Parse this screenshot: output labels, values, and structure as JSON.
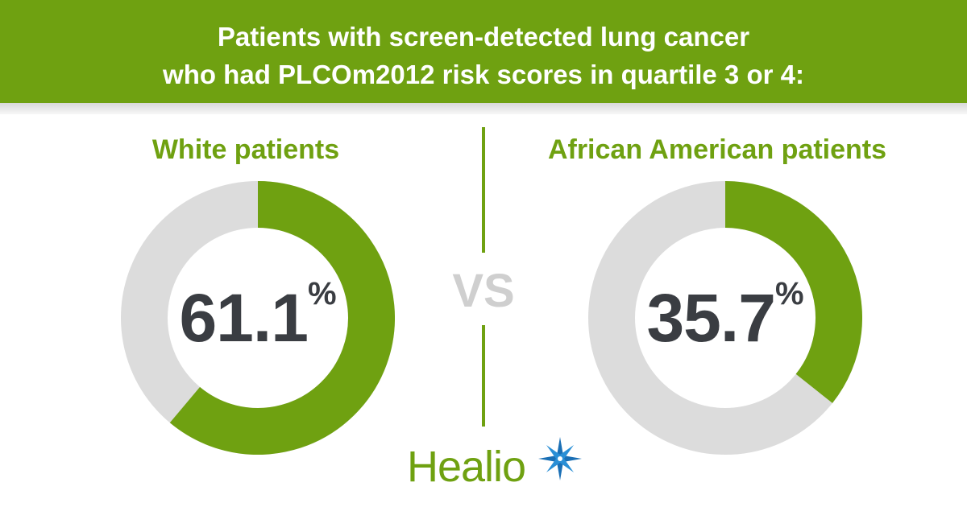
{
  "header": {
    "title_line1": "Patients with screen-detected lung cancer",
    "title_line2": "who had PLCOm2012 risk scores in quartile 3 or 4:"
  },
  "comparison": {
    "vs_label": "VS"
  },
  "chart_data": [
    {
      "type": "pie",
      "title": "White patients",
      "values": [
        61.1,
        38.9
      ],
      "center_label": "61.1",
      "unit": "%",
      "colors": [
        "#6fa111",
        "#dcdcdc"
      ]
    },
    {
      "type": "pie",
      "title": "African American patients",
      "values": [
        35.7,
        64.3
      ],
      "center_label": "35.7",
      "unit": "%",
      "colors": [
        "#6fa111",
        "#dcdcdc"
      ]
    }
  ],
  "brand": {
    "logo_text": "Healio",
    "logo_icon": "star-burst-icon",
    "primary_color": "#6fa111",
    "accent_color": "#1a6fb5"
  }
}
